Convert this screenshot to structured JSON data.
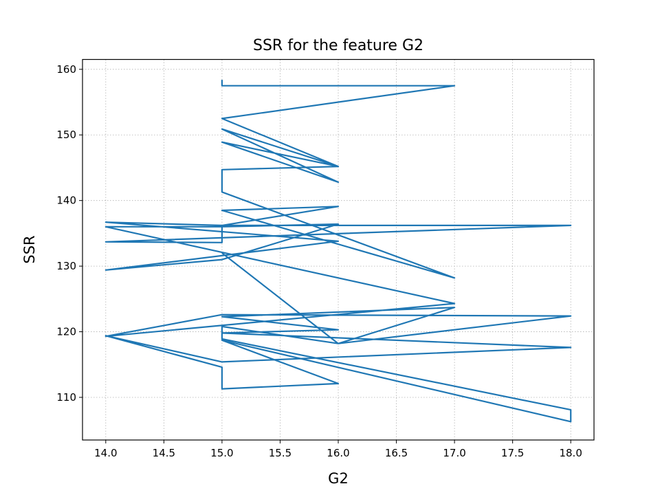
{
  "chart_data": {
    "type": "line",
    "title": "SSR for the feature G2",
    "xlabel": "G2",
    "ylabel": "SSR",
    "xlim": [
      13.8,
      18.2
    ],
    "ylim": [
      103.5,
      161.5
    ],
    "xticks": [
      14.0,
      14.5,
      15.0,
      15.5,
      16.0,
      16.5,
      17.0,
      17.5,
      18.0
    ],
    "xtick_labels": [
      "14.0",
      "14.5",
      "15.0",
      "15.5",
      "16.0",
      "16.5",
      "17.0",
      "17.5",
      "18.0"
    ],
    "yticks": [
      110,
      120,
      130,
      140,
      150,
      160
    ],
    "ytick_labels": [
      "110",
      "120",
      "130",
      "140",
      "150",
      "160"
    ],
    "grid": true,
    "line_color": "#1f77b4",
    "series": [
      {
        "x": [
          15,
          15,
          17,
          15,
          16,
          15,
          16,
          15,
          16,
          15,
          15,
          17,
          15,
          16,
          15,
          15,
          14,
          18,
          15,
          14,
          16,
          14,
          15,
          16,
          15,
          14,
          17,
          14,
          15,
          18,
          16,
          17,
          15,
          16,
          15,
          18,
          15,
          14,
          15,
          15,
          16,
          15,
          18,
          18,
          15,
          15,
          16,
          15
        ],
        "y": [
          158.4,
          157.5,
          157.5,
          152.5,
          145.2,
          150.9,
          142.8,
          148.9,
          145.2,
          144.7,
          141.3,
          128.2,
          138.5,
          139.1,
          136.2,
          133.6,
          133.7,
          136.2,
          136.2,
          136.7,
          133.8,
          129.4,
          131.0,
          136.4,
          136.0,
          136.0,
          124.3,
          119.3,
          122.6,
          122.4,
          118.2,
          123.7,
          122.3,
          120.3,
          119.8,
          117.6,
          115.4,
          119.4,
          114.6,
          111.3,
          112.1,
          118.7,
          106.3,
          108.1,
          118.9,
          120.8,
          118.2,
          132.0
        ]
      }
    ]
  }
}
